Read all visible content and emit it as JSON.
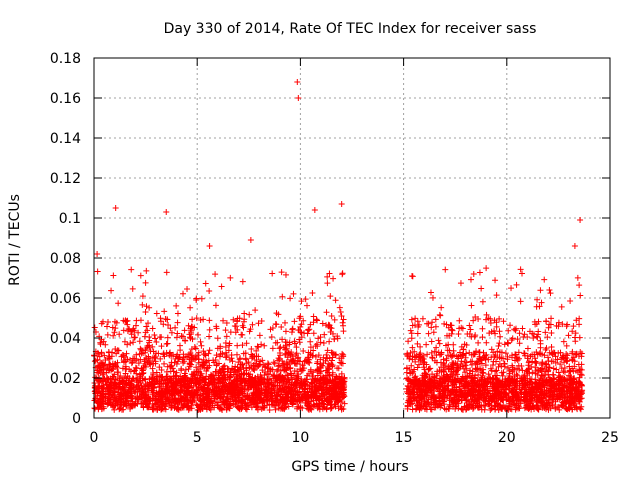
{
  "chart_data": {
    "type": "scatter",
    "title": "Day 330 of 2014, Rate Of TEC Index for receiver sass",
    "xlabel": "GPS time / hours",
    "ylabel": "ROTI / TECUs",
    "xlim": [
      0,
      25
    ],
    "ylim": [
      0,
      0.18
    ],
    "x_ticks": [
      0,
      5,
      10,
      15,
      20,
      25
    ],
    "x_tick_labels": [
      "0",
      "5",
      "10",
      "15",
      "20",
      "25"
    ],
    "y_ticks": [
      0,
      0.02,
      0.04,
      0.06,
      0.08,
      0.1,
      0.12,
      0.14,
      0.16,
      0.18
    ],
    "y_tick_labels": [
      "0",
      "0.02",
      "0.04",
      "0.06",
      "0.08",
      "0.1",
      "0.12",
      "0.14",
      "0.16",
      "0.18"
    ],
    "grid": true,
    "marker": "+",
    "marker_color": "#ff0000",
    "series": [
      {
        "name": "ROTI",
        "segments": [
          {
            "x_start": 0.0,
            "x_end": 12.15
          },
          {
            "x_start": 15.15,
            "x_end": 23.65
          }
        ],
        "notable_points": [
          {
            "x": 9.85,
            "y": 0.168
          },
          {
            "x": 9.9,
            "y": 0.16
          },
          {
            "x": 1.05,
            "y": 0.105
          },
          {
            "x": 3.5,
            "y": 0.103
          },
          {
            "x": 10.7,
            "y": 0.104
          },
          {
            "x": 12.0,
            "y": 0.107
          },
          {
            "x": 23.55,
            "y": 0.099
          },
          {
            "x": 0.15,
            "y": 0.082
          },
          {
            "x": 5.6,
            "y": 0.086
          },
          {
            "x": 7.6,
            "y": 0.089
          },
          {
            "x": 18.4,
            "y": 0.072
          },
          {
            "x": 23.3,
            "y": 0.086
          }
        ]
      }
    ]
  }
}
